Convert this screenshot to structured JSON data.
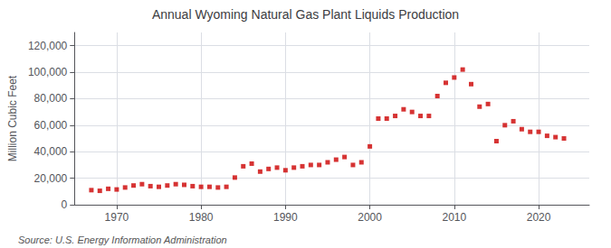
{
  "chart_data": {
    "type": "scatter",
    "title": "Annual Wyoming Natural Gas Plant Liquids Production",
    "ylabel": "Million Cubic Feet",
    "annotations": [
      "Source: U.S. Energy Information Administration"
    ],
    "x": [
      1967,
      1968,
      1969,
      1970,
      1971,
      1972,
      1973,
      1974,
      1975,
      1976,
      1977,
      1978,
      1979,
      1980,
      1981,
      1982,
      1983,
      1984,
      1985,
      1986,
      1987,
      1988,
      1989,
      1990,
      1991,
      1992,
      1993,
      1994,
      1995,
      1996,
      1997,
      1998,
      1999,
      2000,
      2001,
      2002,
      2003,
      2004,
      2005,
      2006,
      2007,
      2008,
      2009,
      2010,
      2011,
      2012,
      2013,
      2014,
      2015,
      2016,
      2017,
      2018,
      2019,
      2020,
      2021,
      2022,
      2023
    ],
    "values": [
      11000,
      10500,
      12000,
      11500,
      13000,
      14500,
      15500,
      14000,
      13500,
      14500,
      15500,
      15000,
      14000,
      13500,
      13500,
      13000,
      13500,
      20500,
      29000,
      31000,
      25000,
      27000,
      28000,
      26000,
      28000,
      29000,
      30000,
      30000,
      32000,
      34000,
      36000,
      30000,
      32000,
      44000,
      65000,
      65000,
      67000,
      72000,
      70000,
      67000,
      67000,
      82000,
      92000,
      96000,
      102000,
      91000,
      74000,
      76000,
      48000,
      60000,
      63000,
      57000,
      55000,
      55000,
      52000,
      51000,
      50000
    ],
    "color": "#cc0000",
    "marker": "square",
    "xlim": [
      1965,
      2026
    ],
    "xticks": [
      1970,
      1980,
      1990,
      2000,
      2010,
      2020
    ],
    "ylim": [
      0,
      130000
    ],
    "yticks": [
      0,
      {
        "value": 20000,
        "label": "20,000"
      },
      {
        "value": 40000,
        "label": "40,000"
      },
      {
        "value": 60000,
        "label": "60,000"
      },
      {
        "value": 80000,
        "label": "80,000"
      },
      {
        "value": 100000,
        "label": "100,000"
      },
      {
        "value": 120000,
        "label": "120,000"
      }
    ],
    "grid": true
  }
}
